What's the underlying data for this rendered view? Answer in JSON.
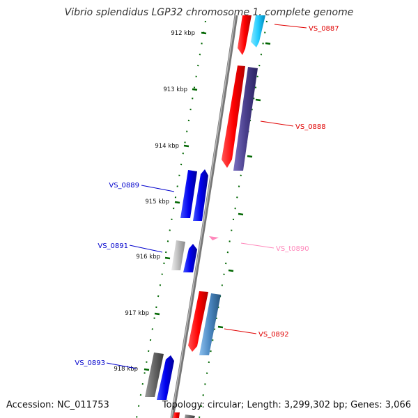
{
  "title": "Vibrio splendidus LGP32 chromosome 1, complete genome",
  "accession_text": "Accession: NC_011753",
  "summary_text": "Topology: circular; Length: 3,299,302 bp; Genes: 3,066",
  "ticks": [
    "912 kbp",
    "913 kbp",
    "914 kbp",
    "915 kbp",
    "916 kbp",
    "917 kbp",
    "918 kbp"
  ],
  "genes": [
    {
      "id": "VS_0887",
      "label": "VS_0887",
      "strand": "+",
      "color": "#e00000"
    },
    {
      "id": "VS_0888",
      "label": "VS_0888",
      "strand": "+",
      "color": "#e00000"
    },
    {
      "id": "VS_0889",
      "label": "VS_0889",
      "strand": "-",
      "color": "#0000cc"
    },
    {
      "id": "VS_0891",
      "label": "VS_0891",
      "strand": "-",
      "color": "#0000cc"
    },
    {
      "id": "VS_t0890",
      "label": "VS_t0890",
      "strand": "+",
      "color": "#ff88bb"
    },
    {
      "id": "VS_0892",
      "label": "VS_0892",
      "strand": "+",
      "color": "#e00000"
    },
    {
      "id": "VS_0893",
      "label": "VS_0893",
      "strand": "-",
      "color": "#0000cc"
    }
  ],
  "colors": {
    "plus_label": "#e00000",
    "minus_label": "#0000cc",
    "trna_label": "#ff88bb",
    "tick": "#006600",
    "backbone": "#888888",
    "cds_red": "#ff1a1a",
    "cds_blue": "#0000ee",
    "cds_cyan": "#22ccff",
    "cds_purple": "#4a3f8c",
    "cds_steel": "#4a86c0",
    "cds_gray": "#666666",
    "cds_lightgray": "#bbbbbb"
  }
}
